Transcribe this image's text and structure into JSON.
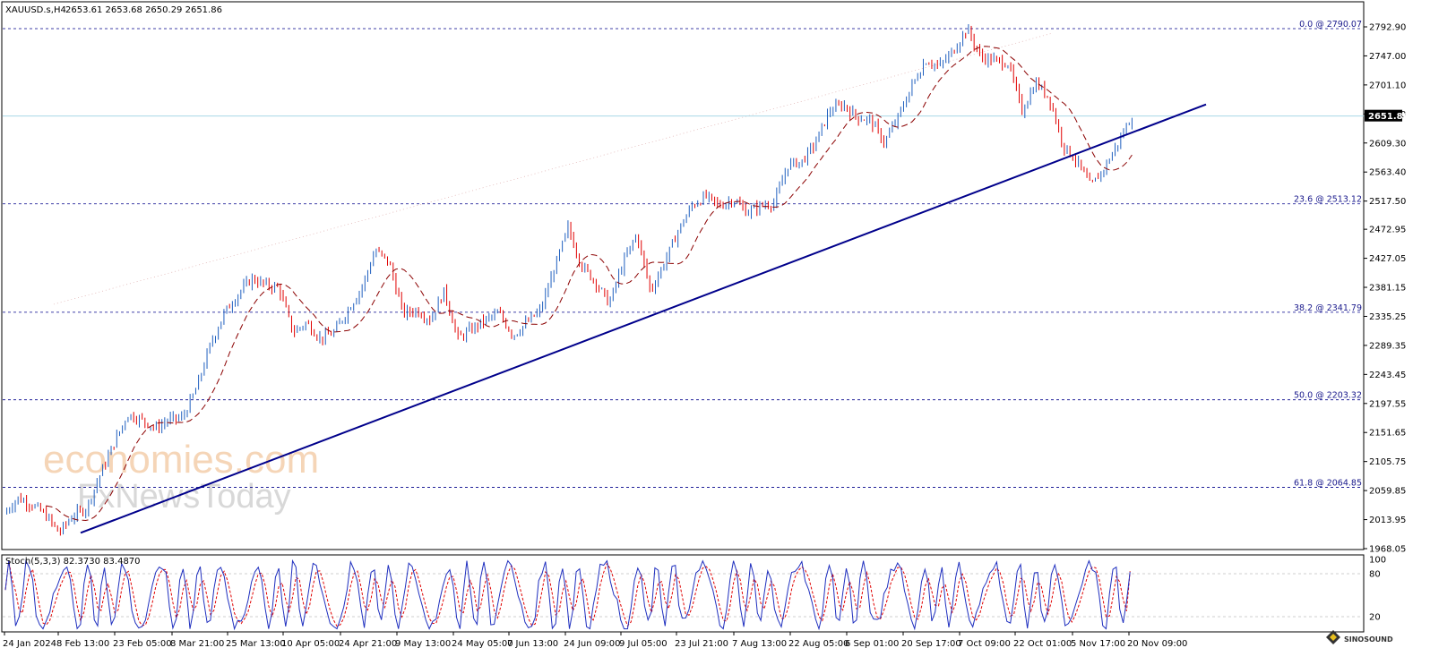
{
  "header": {
    "symbol": "XAUUSD.s,H4",
    "ohlc": "2653.61 2653.68 2650.29 2651.86"
  },
  "price_axis": {
    "ticks": [
      "2792.90",
      "2747.00",
      "2701.10",
      "2655.20",
      "2609.30",
      "2563.40",
      "2517.50",
      "2472.95",
      "2427.05",
      "2381.15",
      "2335.25",
      "2289.35",
      "2243.45",
      "2197.55",
      "2151.65",
      "2105.75",
      "2059.85",
      "2013.95",
      "1968.05"
    ],
    "current_price": "2651.86"
  },
  "fib_levels": [
    {
      "label": "0.0 @ 2790.07",
      "price": 2790.07
    },
    {
      "label": "23.6 @ 2513.12",
      "price": 2513.12
    },
    {
      "label": "38.2 @ 2341.79",
      "price": 2341.79
    },
    {
      "label": "50.0 @ 2203.32",
      "price": 2203.32
    },
    {
      "label": "61.8 @ 2064.85",
      "price": 2064.85
    }
  ],
  "time_axis": {
    "labels": [
      "24 Jan 2024",
      "8 Feb 13:00",
      "23 Feb 05:00",
      "8 Mar 21:00",
      "25 Mar 13:00",
      "10 Apr 05:00",
      "24 Apr 21:00",
      "9 May 13:00",
      "24 May 05:00",
      "7 Jun 13:00",
      "24 Jun 09:00",
      "9 Jul 05:00",
      "23 Jul 21:00",
      "7 Aug 13:00",
      "22 Aug 05:00",
      "6 Sep 01:00",
      "20 Sep 17:00",
      "7 Oct 09:00",
      "22 Oct 01:00",
      "5 Nov 17:00",
      "20 Nov 09:00"
    ]
  },
  "stochastic": {
    "label": "Stoch(5,3,3) 82.3730 83.4870",
    "levels": [
      "100",
      "80",
      "20"
    ]
  },
  "watermark": {
    "line1": "economies.com",
    "line2": "FxNewsToday"
  },
  "logo": {
    "text": "SINOSOUND"
  },
  "colors": {
    "bull_candle": "#1f5fbf",
    "bear_candle": "#e00000",
    "moving_average": "#8b0000",
    "trendline": "#00008b",
    "fib_line": "#00008b",
    "price_line": "#a8d8e6",
    "stoch_main": "#1f2fbf",
    "stoch_signal": "#e00000"
  },
  "chart_data": {
    "type": "candlestick",
    "symbol": "XAUUSD.s",
    "timeframe": "H4",
    "ylim": [
      1968.05,
      2801
    ],
    "last_price": 2651.86,
    "price_path": [
      {
        "x": "24 Jan 2024",
        "y": 2023
      },
      {
        "x": "30 Jan",
        "y": 2048
      },
      {
        "x": "3 Feb",
        "y": 2038
      },
      {
        "x": "8 Feb 13:00",
        "y": 2022
      },
      {
        "x": "13 Feb",
        "y": 1993
      },
      {
        "x": "18 Feb",
        "y": 2020
      },
      {
        "x": "23 Feb 05:00",
        "y": 2032
      },
      {
        "x": "1 Mar",
        "y": 2085
      },
      {
        "x": "5 Mar",
        "y": 2135
      },
      {
        "x": "8 Mar 21:00",
        "y": 2180
      },
      {
        "x": "12 Mar",
        "y": 2172
      },
      {
        "x": "16 Mar",
        "y": 2158
      },
      {
        "x": "20 Mar",
        "y": 2172
      },
      {
        "x": "25 Mar 13:00",
        "y": 2175
      },
      {
        "x": "28 Mar",
        "y": 2222
      },
      {
        "x": "3 Apr",
        "y": 2290
      },
      {
        "x": "7 Apr",
        "y": 2340
      },
      {
        "x": "10 Apr 05:00",
        "y": 2370
      },
      {
        "x": "12 Apr",
        "y": 2395
      },
      {
        "x": "16 Apr",
        "y": 2385
      },
      {
        "x": "19 Apr",
        "y": 2380
      },
      {
        "x": "22 Apr",
        "y": 2310
      },
      {
        "x": "24 Apr 21:00",
        "y": 2325
      },
      {
        "x": "29 Apr",
        "y": 2300
      },
      {
        "x": "3 May",
        "y": 2310
      },
      {
        "x": "9 May 13:00",
        "y": 2345
      },
      {
        "x": "14 May",
        "y": 2380
      },
      {
        "x": "17 May",
        "y": 2440
      },
      {
        "x": "20 May",
        "y": 2420
      },
      {
        "x": "24 May 05:00",
        "y": 2340
      },
      {
        "x": "29 May",
        "y": 2345
      },
      {
        "x": "3 Jun",
        "y": 2330
      },
      {
        "x": "7 Jun 13:00",
        "y": 2375
      },
      {
        "x": "10 Jun",
        "y": 2300
      },
      {
        "x": "14 Jun",
        "y": 2315
      },
      {
        "x": "19 Jun",
        "y": 2330
      },
      {
        "x": "24 Jun 09:00",
        "y": 2340
      },
      {
        "x": "28 Jun",
        "y": 2305
      },
      {
        "x": "3 Jul",
        "y": 2325
      },
      {
        "x": "9 Jul 05:00",
        "y": 2345
      },
      {
        "x": "12 Jul",
        "y": 2410
      },
      {
        "x": "16 Jul",
        "y": 2475
      },
      {
        "x": "19 Jul",
        "y": 2415
      },
      {
        "x": "23 Jul 21:00",
        "y": 2390
      },
      {
        "x": "26 Jul",
        "y": 2355
      },
      {
        "x": "31 Jul",
        "y": 2420
      },
      {
        "x": "2 Aug",
        "y": 2465
      },
      {
        "x": "5 Aug",
        "y": 2375
      },
      {
        "x": "7 Aug 13:00",
        "y": 2420
      },
      {
        "x": "12 Aug",
        "y": 2470
      },
      {
        "x": "16 Aug",
        "y": 2510
      },
      {
        "x": "20 Aug",
        "y": 2525
      },
      {
        "x": "22 Aug 05:00",
        "y": 2510
      },
      {
        "x": "27 Aug",
        "y": 2520
      },
      {
        "x": "1 Sep",
        "y": 2500
      },
      {
        "x": "6 Sep 01:00",
        "y": 2510
      },
      {
        "x": "10 Sep",
        "y": 2515
      },
      {
        "x": "13 Sep",
        "y": 2575
      },
      {
        "x": "17 Sep",
        "y": 2580
      },
      {
        "x": "20 Sep 17:00",
        "y": 2610
      },
      {
        "x": "24 Sep",
        "y": 2660
      },
      {
        "x": "27 Sep",
        "y": 2670
      },
      {
        "x": "1 Oct",
        "y": 2650
      },
      {
        "x": "7 Oct 09:00",
        "y": 2645
      },
      {
        "x": "10 Oct",
        "y": 2610
      },
      {
        "x": "14 Oct",
        "y": 2650
      },
      {
        "x": "17 Oct",
        "y": 2700
      },
      {
        "x": "22 Oct 01:00",
        "y": 2740
      },
      {
        "x": "25 Oct",
        "y": 2730
      },
      {
        "x": "28 Oct",
        "y": 2755
      },
      {
        "x": "31 Oct",
        "y": 2790
      },
      {
        "x": "1 Nov",
        "y": 2745
      },
      {
        "x": "4 Nov",
        "y": 2740
      },
      {
        "x": "5 Nov 17:00",
        "y": 2735
      },
      {
        "x": "7 Nov",
        "y": 2660
      },
      {
        "x": "8 Nov",
        "y": 2705
      },
      {
        "x": "11 Nov",
        "y": 2680
      },
      {
        "x": "13 Nov",
        "y": 2605
      },
      {
        "x": "14 Nov",
        "y": 2580
      },
      {
        "x": "15 Nov",
        "y": 2540
      },
      {
        "x": "17 Nov",
        "y": 2570
      },
      {
        "x": "18 Nov",
        "y": 2610
      },
      {
        "x": "20 Nov 09:00",
        "y": 2651.86
      }
    ],
    "trendline": [
      {
        "x": "8 Feb 13:00",
        "y": 1993
      },
      {
        "x": "20 Nov 09:00",
        "y": 2625
      },
      {
        "x": "25 Nov",
        "y": 2668
      }
    ],
    "stochastic": {
      "main": 82.373,
      "signal": 83.487,
      "levels": [
        20,
        80
      ]
    }
  }
}
